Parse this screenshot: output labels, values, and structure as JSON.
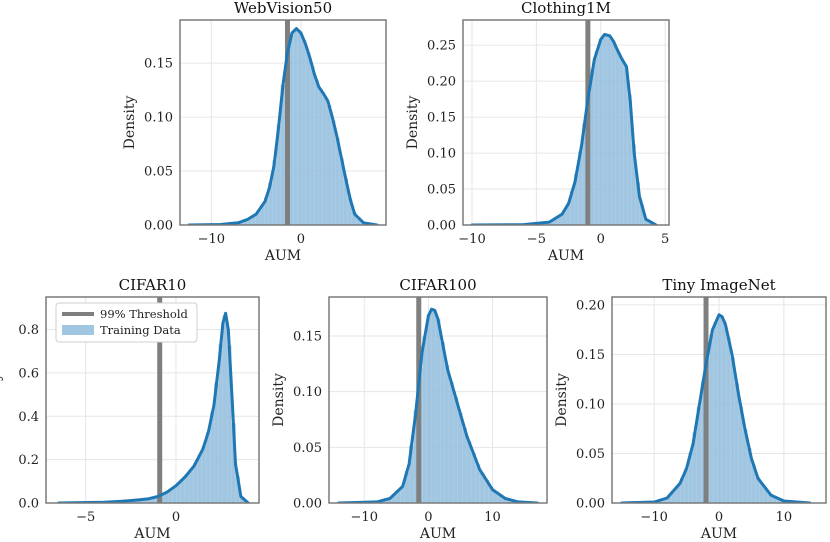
{
  "colors": {
    "kde": "#1f77b4",
    "hist_fill": "#8fbcdc",
    "threshold": "#7f7f7f",
    "frame": "#7a7a7a",
    "grid": "#e6e6e6"
  },
  "legend": {
    "threshold_label": "99% Threshold",
    "training_label": "Training Data"
  },
  "chart_data": [
    {
      "title": "WebVision50",
      "type": "area",
      "xlabel": "AUM",
      "ylabel": "Density",
      "xlim": [
        -13.5,
        9.5
      ],
      "ylim": [
        0,
        0.19
      ],
      "xticks": [
        -10,
        0
      ],
      "xtick_labels": [
        "−10",
        "0"
      ],
      "yticks": [
        0,
        0.05,
        0.1,
        0.15
      ],
      "ytick_labels": [
        "0.00",
        "0.05",
        "0.10",
        "0.15"
      ],
      "threshold": -1.5,
      "curve_x": [
        -12.5,
        -9,
        -7,
        -6,
        -5,
        -4,
        -3.5,
        -3,
        -2.5,
        -2,
        -1.5,
        -1,
        -0.5,
        0,
        0.5,
        1,
        1.5,
        2,
        2.5,
        3,
        3.5,
        4,
        4.5,
        5,
        5.5,
        6,
        7,
        8.5
      ],
      "curve_y": [
        0.0,
        0.0005,
        0.002,
        0.005,
        0.01,
        0.022,
        0.035,
        0.055,
        0.09,
        0.13,
        0.16,
        0.178,
        0.182,
        0.178,
        0.168,
        0.155,
        0.14,
        0.128,
        0.122,
        0.115,
        0.1,
        0.083,
        0.063,
        0.043,
        0.024,
        0.01,
        0.002,
        0.0
      ]
    },
    {
      "title": "Clothing1M",
      "type": "area",
      "xlabel": "AUM",
      "ylabel": "Density",
      "xlim": [
        -10.7,
        5.3
      ],
      "ylim": [
        0,
        0.285
      ],
      "xticks": [
        -10,
        -5,
        0,
        5
      ],
      "xtick_labels": [
        "−10",
        "−5",
        "0",
        "5"
      ],
      "yticks": [
        0,
        0.05,
        0.1,
        0.15,
        0.2,
        0.25
      ],
      "ytick_labels": [
        "0.00",
        "0.05",
        "0.10",
        "0.15",
        "0.20",
        "0.25"
      ],
      "threshold": -1.0,
      "curve_x": [
        -10,
        -6,
        -4,
        -3,
        -2.5,
        -2,
        -1.5,
        -1,
        -0.5,
        0,
        0.3,
        0.7,
        1,
        1.3,
        1.6,
        2,
        2.3,
        2.6,
        3,
        3.5,
        4.3
      ],
      "curve_y": [
        0.0,
        0.0005,
        0.004,
        0.015,
        0.03,
        0.06,
        0.11,
        0.175,
        0.23,
        0.258,
        0.265,
        0.263,
        0.255,
        0.243,
        0.232,
        0.22,
        0.17,
        0.1,
        0.04,
        0.008,
        0.0
      ]
    },
    {
      "title": "CIFAR10",
      "type": "area",
      "xlabel": "AUM",
      "ylabel": "Density",
      "xlim": [
        -7.2,
        4.6
      ],
      "ylim": [
        0,
        0.95
      ],
      "xticks": [
        -5,
        0
      ],
      "xtick_labels": [
        "−5",
        "0"
      ],
      "yticks": [
        0,
        0.2,
        0.4,
        0.6,
        0.8
      ],
      "ytick_labels": [
        "0.0",
        "0.2",
        "0.4",
        "0.6",
        "0.8"
      ],
      "threshold": -0.9,
      "curve_x": [
        -6.5,
        -4,
        -3,
        -2,
        -1.5,
        -1,
        -0.5,
        0,
        0.5,
        1,
        1.5,
        1.8,
        2.1,
        2.4,
        2.6,
        2.75,
        2.9,
        3.1,
        3.3,
        3.6,
        4.0
      ],
      "curve_y": [
        0.0,
        0.003,
        0.008,
        0.015,
        0.02,
        0.03,
        0.05,
        0.08,
        0.12,
        0.17,
        0.25,
        0.33,
        0.45,
        0.66,
        0.83,
        0.875,
        0.8,
        0.5,
        0.18,
        0.03,
        0.0
      ]
    },
    {
      "title": "CIFAR100",
      "type": "area",
      "xlabel": "AUM",
      "ylabel": "Density",
      "xlim": [
        -15.5,
        18.5
      ],
      "ylim": [
        0,
        0.185
      ],
      "xticks": [
        -10,
        0,
        10
      ],
      "xtick_labels": [
        "−10",
        "0",
        "10"
      ],
      "yticks": [
        0,
        0.05,
        0.1,
        0.15
      ],
      "ytick_labels": [
        "0.00",
        "0.05",
        "0.10",
        "0.15"
      ],
      "threshold": -1.5,
      "curve_x": [
        -14,
        -8,
        -6,
        -4,
        -3,
        -2,
        -1,
        0,
        0.5,
        1,
        1.5,
        2,
        3,
        4,
        5,
        6,
        7,
        8,
        10,
        12,
        14,
        17
      ],
      "curve_y": [
        0.0,
        0.001,
        0.004,
        0.015,
        0.035,
        0.08,
        0.135,
        0.168,
        0.174,
        0.173,
        0.165,
        0.15,
        0.12,
        0.1,
        0.08,
        0.06,
        0.045,
        0.03,
        0.012,
        0.004,
        0.001,
        0.0
      ]
    },
    {
      "title": "Tiny ImageNet",
      "type": "area",
      "xlabel": "AUM",
      "ylabel": "Density",
      "xlim": [
        -16.5,
        16.5
      ],
      "ylim": [
        0,
        0.208
      ],
      "xticks": [
        -10,
        0,
        10
      ],
      "xtick_labels": [
        "−10",
        "0",
        "10"
      ],
      "yticks": [
        0,
        0.05,
        0.1,
        0.15,
        0.2
      ],
      "ytick_labels": [
        "0.00",
        "0.05",
        "0.10",
        "0.15",
        "0.20"
      ],
      "threshold": -2.0,
      "curve_x": [
        -15,
        -10,
        -8,
        -6,
        -5,
        -4,
        -3,
        -2,
        -1,
        0,
        0.5,
        1,
        2,
        3,
        4,
        5,
        6,
        8,
        10,
        14
      ],
      "curve_y": [
        0.0,
        0.001,
        0.005,
        0.02,
        0.035,
        0.06,
        0.1,
        0.14,
        0.175,
        0.19,
        0.188,
        0.18,
        0.15,
        0.11,
        0.075,
        0.045,
        0.025,
        0.008,
        0.002,
        0.0
      ]
    }
  ]
}
